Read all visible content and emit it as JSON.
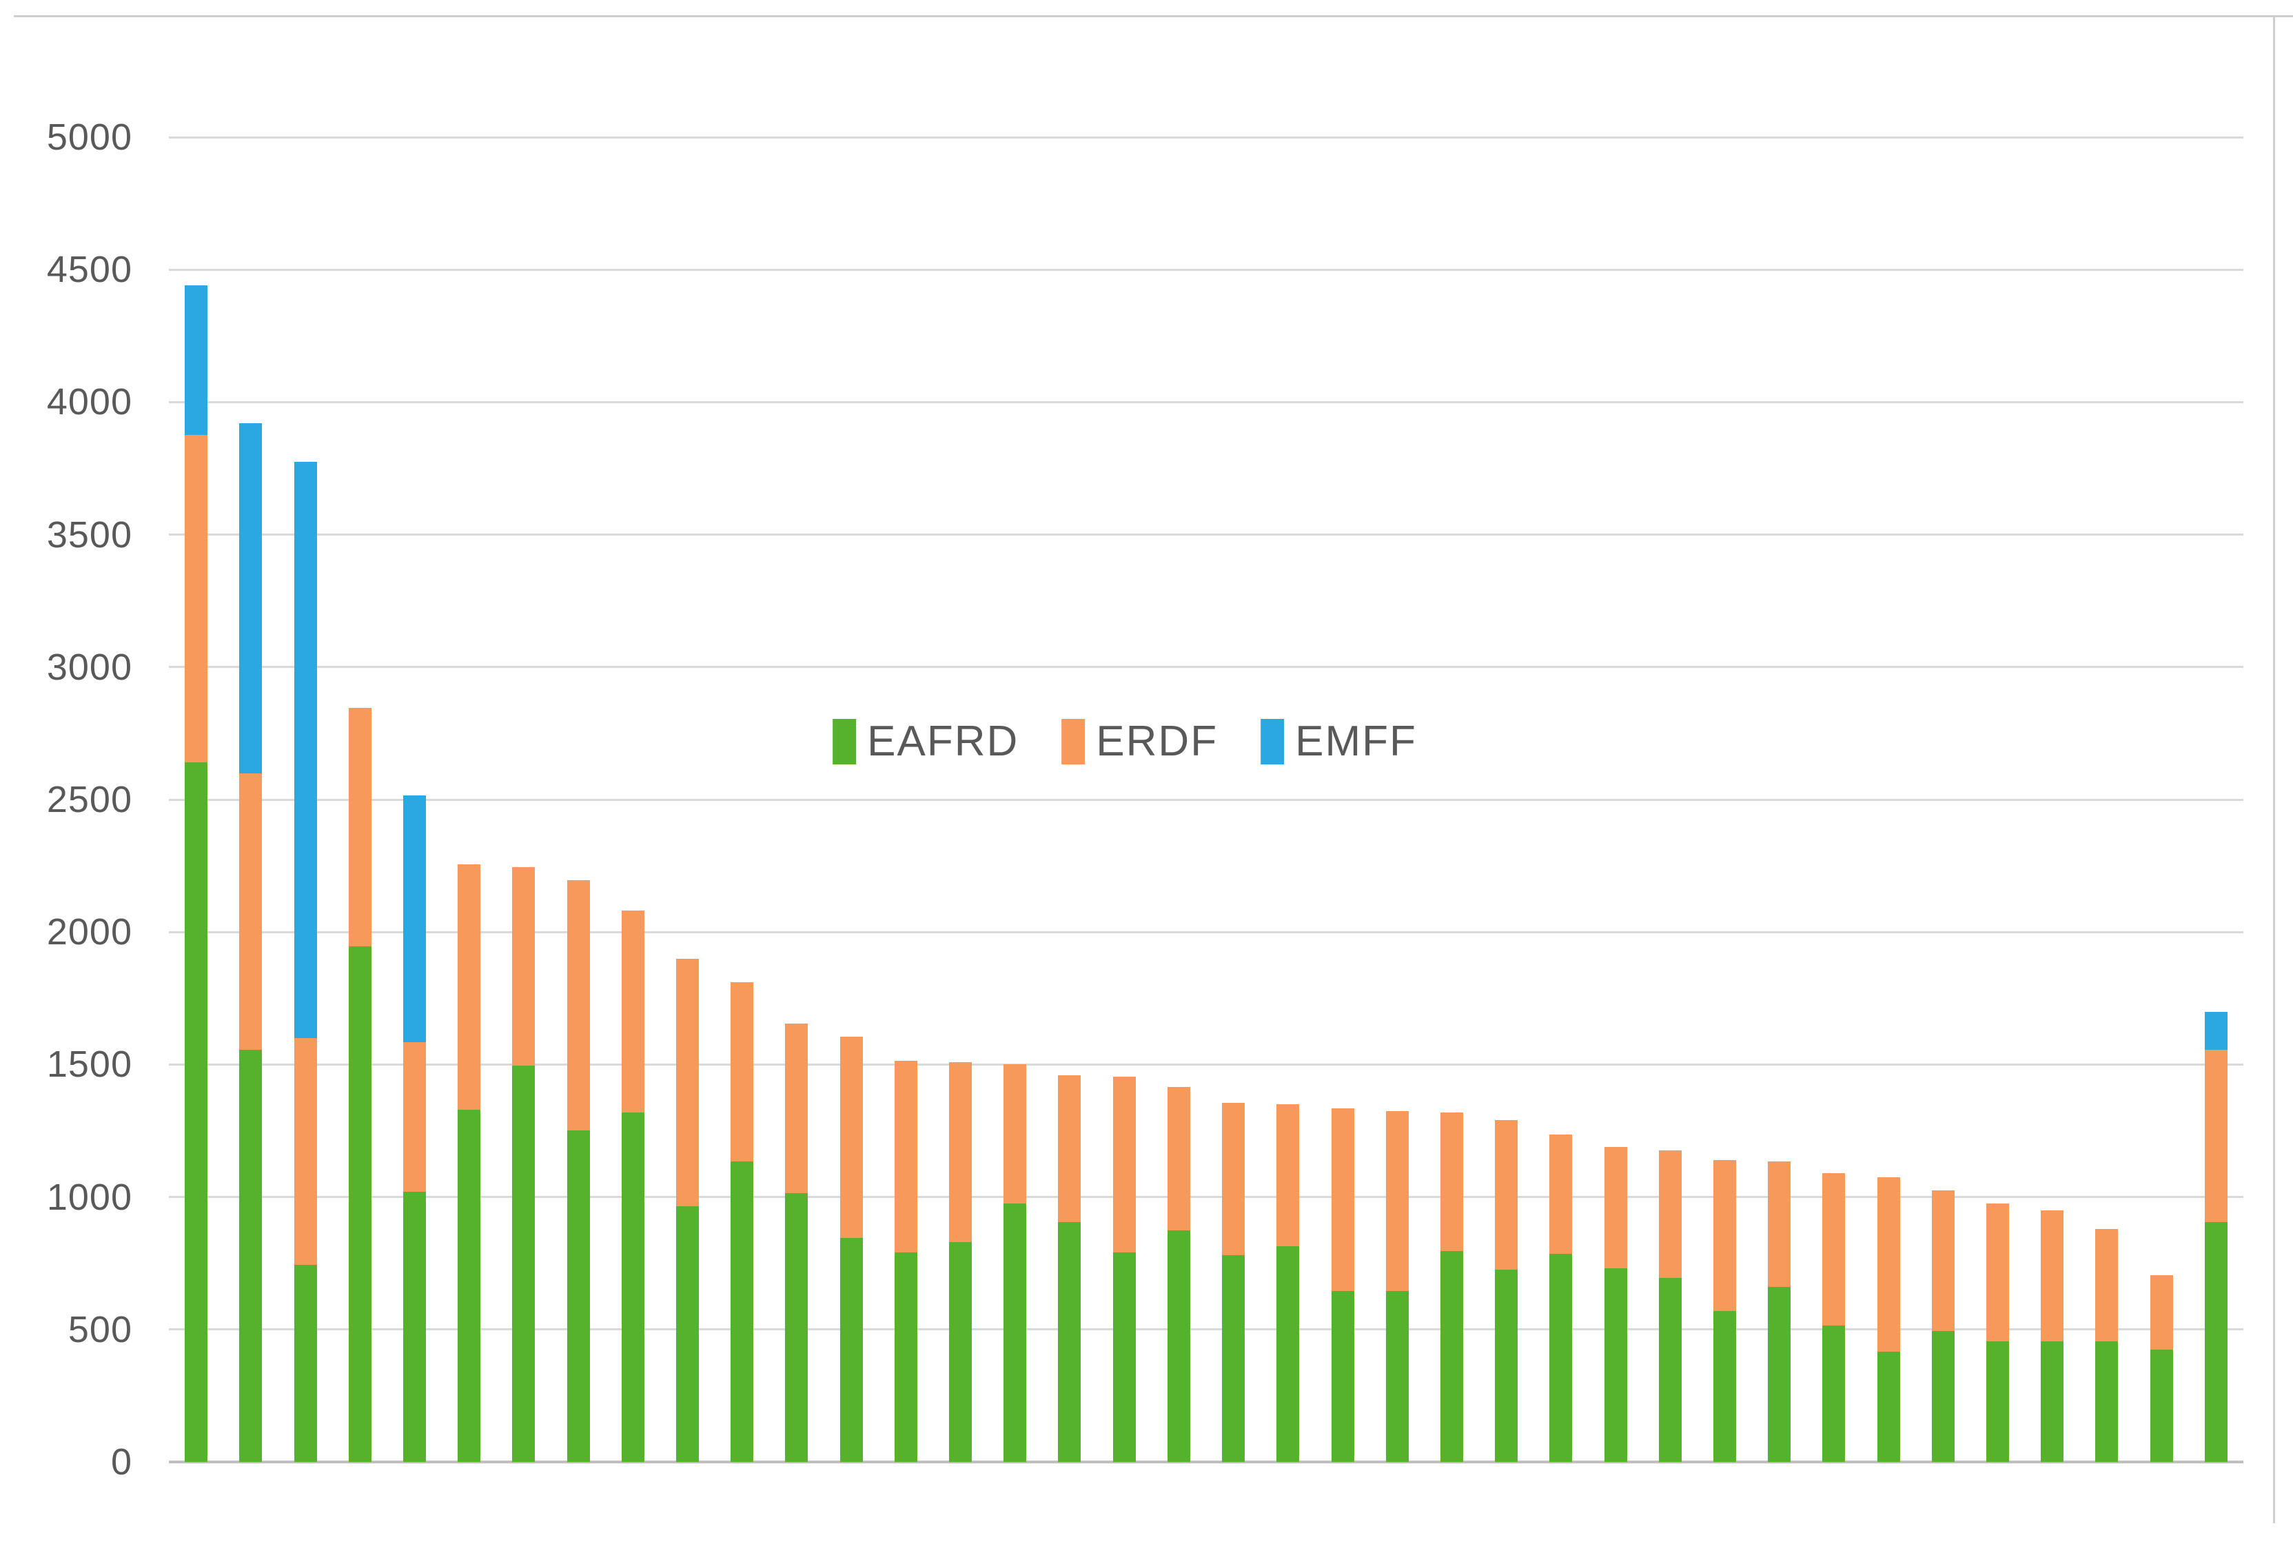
{
  "chart_data": {
    "type": "bar",
    "stacked": true,
    "title": "",
    "xlabel": "",
    "ylabel": "",
    "categories_visible": false,
    "n_bars": 38,
    "ylim": [
      0,
      5000
    ],
    "y_ticks": [
      0,
      500,
      1000,
      1500,
      2000,
      2500,
      3000,
      3500,
      4000,
      4500,
      5000
    ],
    "grid": true,
    "legend_position": "center-overlay",
    "series": [
      {
        "name": "EAFRD",
        "color": "#56b22d",
        "values": [
          2640,
          1555,
          745,
          1945,
          1020,
          1330,
          1495,
          1250,
          1320,
          965,
          1135,
          1015,
          845,
          790,
          830,
          975,
          905,
          790,
          875,
          780,
          815,
          645,
          645,
          795,
          725,
          785,
          730,
          695,
          570,
          660,
          515,
          415,
          495,
          455,
          455,
          455,
          425,
          905
        ]
      },
      {
        "name": "ERDF",
        "color": "#f7995a",
        "values": [
          1235,
          1045,
          855,
          900,
          565,
          925,
          750,
          945,
          760,
          935,
          675,
          640,
          760,
          725,
          680,
          525,
          555,
          665,
          540,
          575,
          535,
          690,
          680,
          525,
          565,
          450,
          460,
          480,
          570,
          475,
          575,
          660,
          530,
          520,
          495,
          425,
          280,
          650
        ]
      },
      {
        "name": "EMFF",
        "color": "#29a9e0",
        "values": [
          565,
          1320,
          2175,
          0,
          930,
          0,
          0,
          0,
          0,
          0,
          0,
          0,
          0,
          0,
          0,
          0,
          0,
          0,
          0,
          0,
          0,
          0,
          0,
          0,
          0,
          0,
          0,
          0,
          0,
          0,
          0,
          0,
          0,
          0,
          0,
          0,
          0,
          145
        ]
      }
    ],
    "colors": {
      "gridline": "#d9d9d9",
      "zero_axis": "#bfbfbf",
      "tick_text": "#595959",
      "frame_border": "#d0cece",
      "background": "#ffffff"
    }
  }
}
